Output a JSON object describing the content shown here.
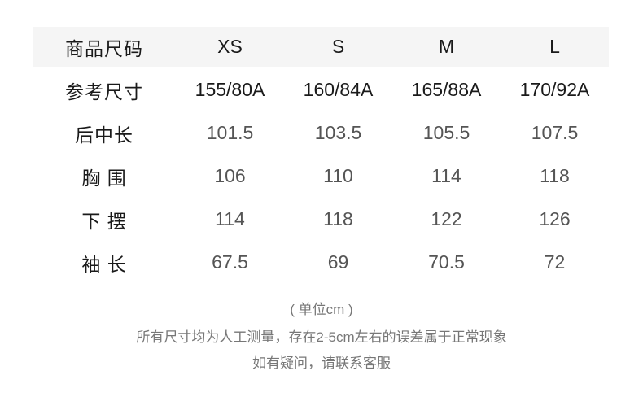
{
  "table": {
    "header": {
      "label": "商品尺码",
      "sizes": [
        "XS",
        "S",
        "M",
        "L"
      ]
    },
    "rows": [
      {
        "label": "参考尺寸",
        "values": [
          "155/80A",
          "160/84A",
          "165/88A",
          "170/92A"
        ]
      },
      {
        "label": "后中长",
        "values": [
          "101.5",
          "103.5",
          "105.5",
          "107.5"
        ]
      },
      {
        "label": "胸 围",
        "values": [
          "106",
          "110",
          "114",
          "118"
        ]
      },
      {
        "label": "下 摆",
        "values": [
          "114",
          "118",
          "122",
          "126"
        ]
      },
      {
        "label": "袖 长",
        "values": [
          "67.5",
          "69",
          "70.5",
          "72"
        ]
      }
    ]
  },
  "notes": {
    "unit": "( 单位cm )",
    "line1": "所有尺寸均为人工测量，存在2-5cm左右的误差属于正常现象",
    "line2": "如有疑问，请联系客服"
  }
}
